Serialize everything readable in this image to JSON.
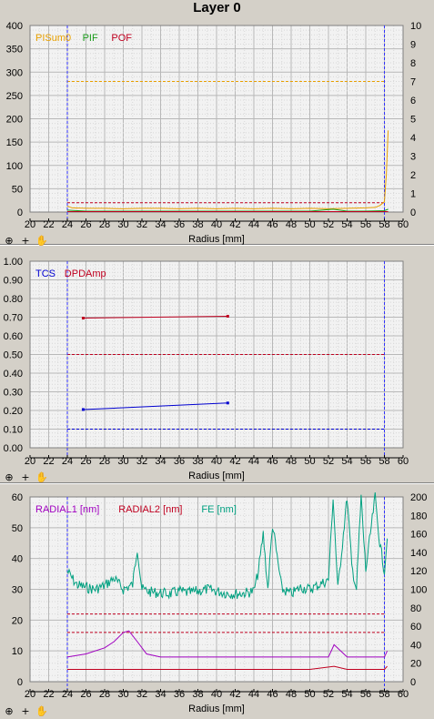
{
  "window": {
    "title": "Layer 0"
  },
  "toolbar_icons": [
    "zoom-icon",
    "crosshair-icon",
    "hand-pan-icon"
  ],
  "chart_data": [
    {
      "type": "line",
      "xlabel": "Radius [mm]",
      "xlim": [
        20,
        60
      ],
      "xticks": [
        20,
        22,
        24,
        26,
        28,
        30,
        32,
        34,
        36,
        38,
        40,
        42,
        44,
        46,
        48,
        50,
        52,
        54,
        56,
        58,
        60
      ],
      "ylim": [
        0,
        400
      ],
      "yticks": [
        0,
        50,
        100,
        150,
        200,
        250,
        300,
        350,
        400
      ],
      "y2lim": [
        0,
        10
      ],
      "y2ticks": [
        0,
        1,
        2,
        3,
        4,
        5,
        6,
        7,
        8,
        9,
        10
      ],
      "markers_x": [
        24,
        58
      ],
      "legend": [
        {
          "name": "PISum0",
          "color": "#e8a000"
        },
        {
          "name": "PIF",
          "color": "#1a9a1a"
        },
        {
          "name": "POF",
          "color": "#c00020"
        }
      ],
      "thresholds": [
        {
          "value": 280,
          "color": "#e8a000"
        },
        {
          "value": 20,
          "color": "#c00020"
        }
      ],
      "series": [
        {
          "name": "PISum0",
          "color": "#e8a000",
          "x": [
            24,
            24.5,
            26,
            28,
            30,
            32,
            34,
            36,
            38,
            40,
            42,
            44,
            46,
            48,
            50,
            52,
            54,
            56,
            57,
            57.5,
            58,
            58.2,
            58.4
          ],
          "y": [
            13,
            9,
            8,
            8,
            7,
            8,
            8,
            7,
            8,
            7,
            8,
            7,
            8,
            7,
            8,
            7,
            8,
            9,
            10,
            14,
            22,
            80,
            175
          ]
        },
        {
          "name": "PIF",
          "color": "#1a9a1a",
          "x": [
            24,
            26,
            30,
            34,
            38,
            42,
            46,
            50,
            52.5,
            54,
            56,
            58,
            58.4
          ],
          "y": [
            4,
            2,
            2,
            2,
            2,
            2,
            2,
            2,
            6,
            2,
            2,
            3,
            6
          ]
        },
        {
          "name": "POF",
          "color": "#c00020",
          "x": [
            24,
            58.4
          ],
          "y": [
            1,
            1
          ]
        }
      ]
    },
    {
      "type": "line",
      "xlabel": "Radius [mm]",
      "xlim": [
        20,
        60
      ],
      "xticks": [
        20,
        22,
        24,
        26,
        28,
        30,
        32,
        34,
        36,
        38,
        40,
        42,
        44,
        46,
        48,
        50,
        52,
        54,
        56,
        58,
        60
      ],
      "ylim": [
        0,
        1
      ],
      "yticks": [
        0,
        0.1,
        0.2,
        0.3,
        0.4,
        0.5,
        0.6,
        0.7,
        0.8,
        0.9,
        1.0
      ],
      "ytick_labels": [
        "0.00",
        "0.10",
        "0.20",
        "0.30",
        "0.40",
        "0.50",
        "0.60",
        "0.70",
        "0.80",
        "0.90",
        "1.00"
      ],
      "markers_x": [
        24,
        58
      ],
      "legend": [
        {
          "name": "TCS",
          "color": "#0000d0"
        },
        {
          "name": "DPDAmp",
          "color": "#c00020"
        }
      ],
      "thresholds": [
        {
          "value": 0.5,
          "color": "#c00020"
        },
        {
          "value": 0.1,
          "color": "#0000d0"
        }
      ],
      "series": [
        {
          "name": "TCS",
          "color": "#0000d0",
          "x": [
            25.7,
            41.2
          ],
          "y": [
            0.205,
            0.24
          ]
        },
        {
          "name": "DPDAmp",
          "color": "#c00020",
          "x": [
            25.7,
            41.2
          ],
          "y": [
            0.695,
            0.705
          ]
        }
      ]
    },
    {
      "type": "line",
      "xlabel": "Radius [mm]",
      "xlim": [
        20,
        60
      ],
      "xticks": [
        20,
        22,
        24,
        26,
        28,
        30,
        32,
        34,
        36,
        38,
        40,
        42,
        44,
        46,
        48,
        50,
        52,
        54,
        56,
        58,
        60
      ],
      "ylim": [
        0,
        60
      ],
      "yticks": [
        0,
        10,
        20,
        30,
        40,
        50,
        60
      ],
      "y2lim": [
        0,
        200
      ],
      "y2ticks": [
        0,
        20,
        40,
        60,
        80,
        100,
        120,
        140,
        160,
        180,
        200
      ],
      "markers_x": [
        24,
        58
      ],
      "legend": [
        {
          "name": "RADIAL1 [nm]",
          "color": "#a000c0"
        },
        {
          "name": "RADIAL2 [nm]",
          "color": "#c00020"
        },
        {
          "name": "FE [nm]",
          "color": "#00a080"
        }
      ],
      "thresholds": [
        {
          "value": 22,
          "color": "#c00020"
        },
        {
          "value": 16,
          "color": "#c00020"
        }
      ],
      "series": [
        {
          "name": "RADIAL1 [nm]",
          "color": "#a000c0",
          "x": [
            24,
            26,
            28,
            29,
            30,
            30.6,
            31.5,
            32.5,
            34,
            38,
            42,
            46,
            50,
            52,
            52.6,
            54,
            56,
            58,
            58.3
          ],
          "y": [
            8,
            9,
            11,
            13,
            16,
            16.5,
            13,
            9,
            8,
            8,
            8,
            8,
            8,
            8,
            12,
            8,
            8,
            8,
            10
          ]
        },
        {
          "name": "RADIAL2 [nm]",
          "color": "#c00020",
          "x": [
            24,
            30,
            40,
            50,
            52.6,
            54,
            58,
            58.3
          ],
          "y": [
            4,
            4,
            4,
            4,
            5,
            4,
            4,
            5
          ]
        },
        {
          "name": "FE [nm]",
          "color": "#00a080",
          "x": [
            24,
            24.5,
            25,
            26,
            27,
            28,
            29,
            30,
            31,
            31.5,
            32,
            33,
            34,
            35,
            36,
            37,
            38,
            39,
            40,
            41,
            42,
            43,
            44,
            44.5,
            45,
            45.5,
            46,
            47,
            48,
            49,
            50,
            51,
            52,
            52.5,
            53,
            53.5,
            54,
            54.5,
            55,
            55.5,
            56,
            57,
            57.5,
            58,
            58.3
          ],
          "y": [
            120,
            112,
            105,
            102,
            100,
            104,
            112,
            100,
            105,
            145,
            100,
            97,
            96,
            95,
            98,
            96,
            98,
            100,
            98,
            96,
            95,
            96,
            98,
            120,
            160,
            100,
            170,
            100,
            95,
            102,
            100,
            105,
            110,
            200,
            100,
            150,
            200,
            125,
            100,
            200,
            120,
            200,
            150,
            120,
            155
          ]
        }
      ]
    }
  ]
}
